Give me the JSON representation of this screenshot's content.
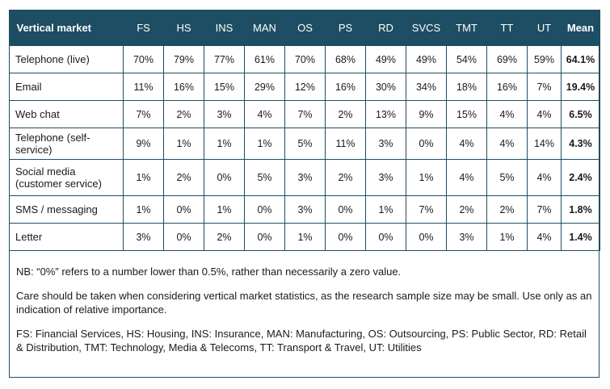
{
  "table": {
    "headers": [
      "Vertical market",
      "FS",
      "HS",
      "INS",
      "MAN",
      "OS",
      "PS",
      "RD",
      "SVCS",
      "TMT",
      "TT",
      "UT",
      "Mean"
    ],
    "rows": [
      {
        "label": "Telephone (live)",
        "values": [
          "70%",
          "79%",
          "77%",
          "61%",
          "70%",
          "68%",
          "49%",
          "49%",
          "54%",
          "69%",
          "59%"
        ],
        "mean": "64.1%"
      },
      {
        "label": "Email",
        "values": [
          "11%",
          "16%",
          "15%",
          "29%",
          "12%",
          "16%",
          "30%",
          "34%",
          "18%",
          "16%",
          "7%"
        ],
        "mean": "19.4%"
      },
      {
        "label": "Web chat",
        "values": [
          "7%",
          "2%",
          "3%",
          "4%",
          "7%",
          "2%",
          "13%",
          "9%",
          "15%",
          "4%",
          "4%"
        ],
        "mean": "6.5%"
      },
      {
        "label": "Telephone (self-service)",
        "values": [
          "9%",
          "1%",
          "1%",
          "1%",
          "5%",
          "11%",
          "3%",
          "0%",
          "4%",
          "4%",
          "14%"
        ],
        "mean": "4.3%"
      },
      {
        "label": "Social media (customer service)",
        "values": [
          "1%",
          "2%",
          "0%",
          "5%",
          "3%",
          "2%",
          "3%",
          "1%",
          "4%",
          "5%",
          "4%"
        ],
        "mean": "2.4%"
      },
      {
        "label": "SMS / messaging",
        "values": [
          "1%",
          "0%",
          "1%",
          "0%",
          "3%",
          "0%",
          "1%",
          "7%",
          "2%",
          "2%",
          "7%"
        ],
        "mean": "1.8%"
      },
      {
        "label": "Letter",
        "values": [
          "3%",
          "0%",
          "2%",
          "0%",
          "1%",
          "0%",
          "0%",
          "0%",
          "3%",
          "1%",
          "4%"
        ],
        "mean": "1.4%"
      }
    ]
  },
  "notes": [
    "NB: “0%” refers to a number lower than 0.5%, rather than necessarily a zero value.",
    "Care should be taken when considering vertical market statistics, as the research sample size may be small. Use only as an indication of relative importance.",
    "FS: Financial Services, HS: Housing, INS: Insurance, MAN: Manufacturing, OS: Outsourcing, PS: Public Sector, RD: Retail & Distribution, TMT: Technology, Media & Telecoms, TT: Transport & Travel, UT: Utilities"
  ],
  "colors": {
    "header_bg": "#1d4e63",
    "border": "#1d4e63",
    "header_text": "#ffffff"
  }
}
